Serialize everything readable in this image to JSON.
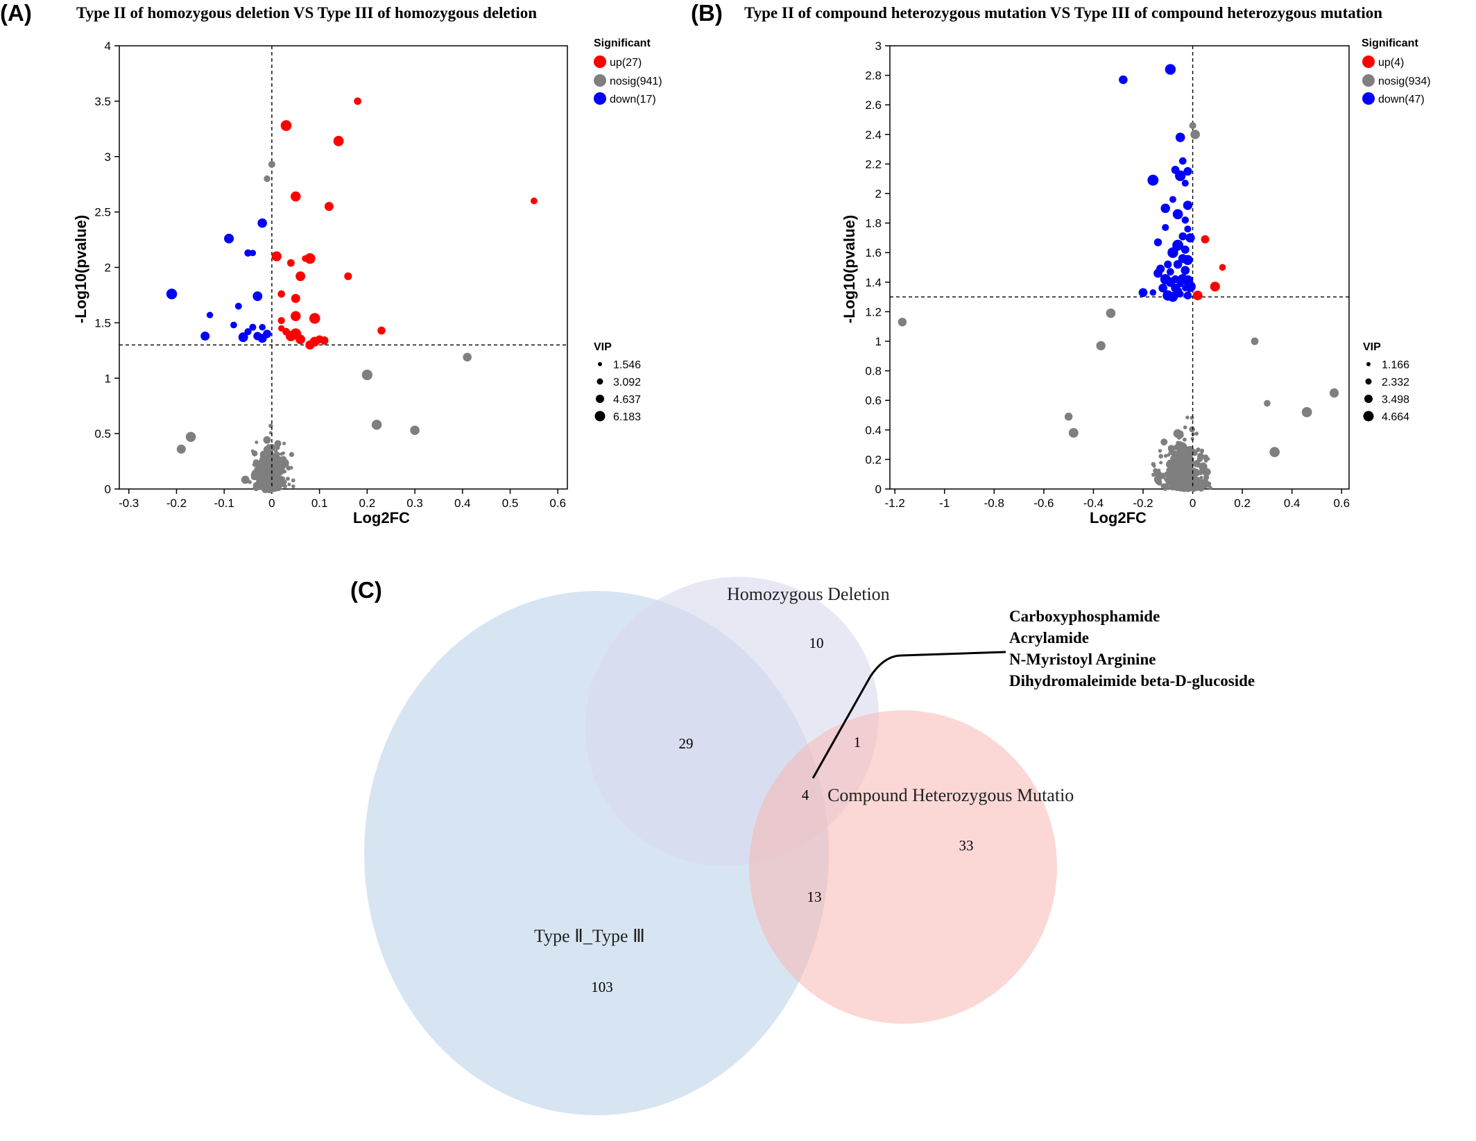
{
  "panelA": {
    "letter": "(A)",
    "title": "Type II of homozygous deletion VS Type III of homozygous deletion",
    "xlabel": "Log2FC",
    "ylabel": "-Log10(pvalue)",
    "xticks": [
      "-0.3",
      "-0.2",
      "-0.1",
      "0",
      "0.1",
      "0.2",
      "0.3",
      "0.4",
      "0.5",
      "0.6"
    ],
    "yticks": [
      "0",
      "0.5",
      "1",
      "1.5",
      "2",
      "2.5",
      "3",
      "3.5",
      "4"
    ],
    "legend": {
      "heading": "Significant",
      "up": "up(27)",
      "nosig": "nosig(941)",
      "down": "down(17)",
      "vip_heading": "VIP",
      "vip_values": [
        "1.546",
        "3.092",
        "4.637",
        "6.183"
      ]
    }
  },
  "panelB": {
    "letter": "(B)",
    "title": "Type II of compound heterozygous mutation VS Type III of compound heterozygous mutation",
    "xlabel": "Log2FC",
    "ylabel": "-Log10(pvalue)",
    "xticks": [
      "-1.2",
      "-1",
      "-0.8",
      "-0.6",
      "-0.4",
      "-0.2",
      "0",
      "0.2",
      "0.4",
      "0.6"
    ],
    "yticks": [
      "0",
      "0.2",
      "0.4",
      "0.6",
      "0.8",
      "1",
      "1.2",
      "1.4",
      "1.6",
      "1.8",
      "2",
      "2.2",
      "2.4",
      "2.6",
      "2.8",
      "3"
    ],
    "legend": {
      "heading": "Significant",
      "up": "up(4)",
      "nosig": "nosig(934)",
      "down": "down(47)",
      "vip_heading": "VIP",
      "vip_values": [
        "1.166",
        "2.332",
        "3.498",
        "4.664"
      ]
    }
  },
  "panelC": {
    "letter": "(C)",
    "sets": {
      "homozygous": "Homozygous Deletion",
      "compound": "Compound Heterozygous Mutatio",
      "type": "Type Ⅱ_Type Ⅲ"
    },
    "counts": {
      "homozygous_only": "10",
      "homozygous_type": "29",
      "homozygous_compound": "1",
      "all_three": "4",
      "compound_only": "33",
      "compound_type": "13",
      "type_only": "103"
    },
    "callout": [
      "Carboxyphosphamide",
      "Acrylamide",
      "N-Myristoyl Arginine",
      "Dihydromaleimide beta-D-glucoside"
    ]
  },
  "colors": {
    "up": "#ff0000",
    "nosig": "#7f7f7f",
    "down": "#0000ff",
    "venn_type": "#c9dcee",
    "venn_homozygous": "#d8d8ee",
    "venn_compound": "#f8b8b2"
  },
  "chart_data": [
    {
      "type": "scatter",
      "title": "Type II of homozygous deletion VS Type III of homozygous deletion",
      "xlabel": "Log2FC",
      "ylabel": "-Log10(pvalue)",
      "xlim": [
        -0.32,
        0.62
      ],
      "ylim": [
        0,
        4
      ],
      "threshold_y": 1.3,
      "threshold_x": 0,
      "legend_position": "right",
      "series": [
        {
          "name": "up(27)",
          "points": [
            [
              0.18,
              3.5
            ],
            [
              0.03,
              3.28
            ],
            [
              0.14,
              3.14
            ],
            [
              0.05,
              2.64
            ],
            [
              0.12,
              2.55
            ],
            [
              0.55,
              2.6
            ],
            [
              0.01,
              2.1
            ],
            [
              0.04,
              2.04
            ],
            [
              0.07,
              2.08
            ],
            [
              0.08,
              2.08
            ],
            [
              0.06,
              1.92
            ],
            [
              0.16,
              1.92
            ],
            [
              0.02,
              1.76
            ],
            [
              0.05,
              1.72
            ],
            [
              0.02,
              1.52
            ],
            [
              0.05,
              1.56
            ],
            [
              0.09,
              1.54
            ],
            [
              0.23,
              1.43
            ],
            [
              0.03,
              1.42
            ],
            [
              0.04,
              1.38
            ],
            [
              0.05,
              1.4
            ],
            [
              0.06,
              1.35
            ],
            [
              0.08,
              1.3
            ],
            [
              0.09,
              1.33
            ],
            [
              0.11,
              1.34
            ],
            [
              0.02,
              1.45
            ],
            [
              0.1,
              1.35
            ]
          ]
        },
        {
          "name": "down(17)",
          "points": [
            [
              -0.21,
              1.76
            ],
            [
              -0.09,
              2.26
            ],
            [
              -0.05,
              2.13
            ],
            [
              -0.02,
              2.4
            ],
            [
              -0.04,
              2.13
            ],
            [
              -0.13,
              1.57
            ],
            [
              -0.07,
              1.65
            ],
            [
              -0.03,
              1.74
            ],
            [
              -0.08,
              1.48
            ],
            [
              -0.04,
              1.46
            ],
            [
              -0.02,
              1.46
            ],
            [
              -0.14,
              1.38
            ],
            [
              -0.06,
              1.37
            ],
            [
              -0.03,
              1.38
            ],
            [
              -0.01,
              1.4
            ],
            [
              -0.05,
              1.42
            ],
            [
              -0.02,
              1.36
            ]
          ]
        },
        {
          "name": "nosig(941)",
          "points": [
            [
              0.41,
              1.19
            ],
            [
              0.2,
              1.03
            ],
            [
              0.3,
              0.53
            ],
            [
              0.22,
              0.58
            ],
            [
              -0.19,
              0.36
            ],
            [
              -0.17,
              0.47
            ],
            [
              0.0,
              2.93
            ],
            [
              -0.01,
              2.8
            ]
          ]
        }
      ]
    },
    {
      "type": "scatter",
      "title": "Type II of compound heterozygous mutation VS Type III of compound heterozygous mutation",
      "xlabel": "Log2FC",
      "ylabel": "-Log10(pvalue)",
      "xlim": [
        -1.22,
        0.63
      ],
      "ylim": [
        0,
        3
      ],
      "threshold_y": 1.3,
      "threshold_x": 0,
      "legend_position": "right",
      "series": [
        {
          "name": "up(4)",
          "points": [
            [
              0.05,
              1.69
            ],
            [
              0.12,
              1.5
            ],
            [
              0.09,
              1.37
            ],
            [
              0.02,
              1.31
            ]
          ]
        },
        {
          "name": "down(47)",
          "points": [
            [
              -0.28,
              2.77
            ],
            [
              -0.09,
              2.84
            ],
            [
              -0.05,
              2.38
            ],
            [
              -0.04,
              2.22
            ],
            [
              -0.07,
              2.16
            ],
            [
              -0.02,
              2.15
            ],
            [
              -0.05,
              2.12
            ],
            [
              -0.03,
              2.07
            ],
            [
              -0.08,
              1.96
            ],
            [
              -0.16,
              2.09
            ],
            [
              -0.11,
              1.9
            ],
            [
              -0.02,
              1.92
            ],
            [
              -0.06,
              1.86
            ],
            [
              -0.03,
              1.82
            ],
            [
              -0.11,
              1.77
            ],
            [
              -0.02,
              1.76
            ],
            [
              -0.04,
              1.71
            ],
            [
              -0.01,
              1.7
            ],
            [
              -0.14,
              1.67
            ],
            [
              -0.06,
              1.65
            ],
            [
              -0.03,
              1.62
            ],
            [
              -0.08,
              1.6
            ],
            [
              -0.04,
              1.56
            ],
            [
              -0.02,
              1.55
            ],
            [
              -0.1,
              1.52
            ],
            [
              -0.06,
              1.52
            ],
            [
              -0.13,
              1.49
            ],
            [
              -0.09,
              1.47
            ],
            [
              -0.03,
              1.48
            ],
            [
              -0.14,
              1.46
            ],
            [
              -0.11,
              1.42
            ],
            [
              -0.07,
              1.42
            ],
            [
              -0.04,
              1.42
            ],
            [
              -0.02,
              1.41
            ],
            [
              -0.09,
              1.4
            ],
            [
              -0.05,
              1.39
            ],
            [
              -0.12,
              1.36
            ],
            [
              -0.07,
              1.36
            ],
            [
              -0.03,
              1.36
            ],
            [
              -0.01,
              1.37
            ],
            [
              -0.2,
              1.33
            ],
            [
              -0.16,
              1.33
            ],
            [
              -0.1,
              1.31
            ],
            [
              -0.05,
              1.32
            ],
            [
              -0.02,
              1.31
            ],
            [
              -0.08,
              1.3
            ],
            [
              -0.06,
              1.34
            ]
          ]
        },
        {
          "name": "nosig(934)",
          "points": [
            [
              -1.17,
              1.13
            ],
            [
              -0.33,
              1.19
            ],
            [
              -0.37,
              0.97
            ],
            [
              -0.5,
              0.49
            ],
            [
              -0.48,
              0.38
            ],
            [
              0.57,
              0.65
            ],
            [
              0.46,
              0.52
            ],
            [
              0.25,
              1.0
            ],
            [
              0.33,
              0.25
            ],
            [
              0.3,
              0.58
            ],
            [
              0.0,
              2.46
            ],
            [
              0.01,
              2.4
            ]
          ]
        }
      ]
    },
    {
      "type": "venn",
      "sets": [
        "Homozygous Deletion",
        "Compound Heterozygous Mutatio",
        "Type Ⅱ_Type Ⅲ"
      ],
      "regions": [
        {
          "sets": [
            "Homozygous Deletion"
          ],
          "count": 10
        },
        {
          "sets": [
            "Homozygous Deletion",
            "Type Ⅱ_Type Ⅲ"
          ],
          "count": 29
        },
        {
          "sets": [
            "Homozygous Deletion",
            "Compound Heterozygous Mutatio"
          ],
          "count": 1
        },
        {
          "sets": [
            "Homozygous Deletion",
            "Compound Heterozygous Mutatio",
            "Type Ⅱ_Type Ⅲ"
          ],
          "count": 4
        },
        {
          "sets": [
            "Compound Heterozygous Mutatio"
          ],
          "count": 33
        },
        {
          "sets": [
            "Compound Heterozygous Mutatio",
            "Type Ⅱ_Type Ⅲ"
          ],
          "count": 13
        },
        {
          "sets": [
            "Type Ⅱ_Type Ⅲ"
          ],
          "count": 103
        }
      ],
      "annotation": [
        "Carboxyphosphamide",
        "Acrylamide",
        "N-Myristoyl Arginine",
        "Dihydromaleimide beta-D-glucoside"
      ]
    }
  ]
}
